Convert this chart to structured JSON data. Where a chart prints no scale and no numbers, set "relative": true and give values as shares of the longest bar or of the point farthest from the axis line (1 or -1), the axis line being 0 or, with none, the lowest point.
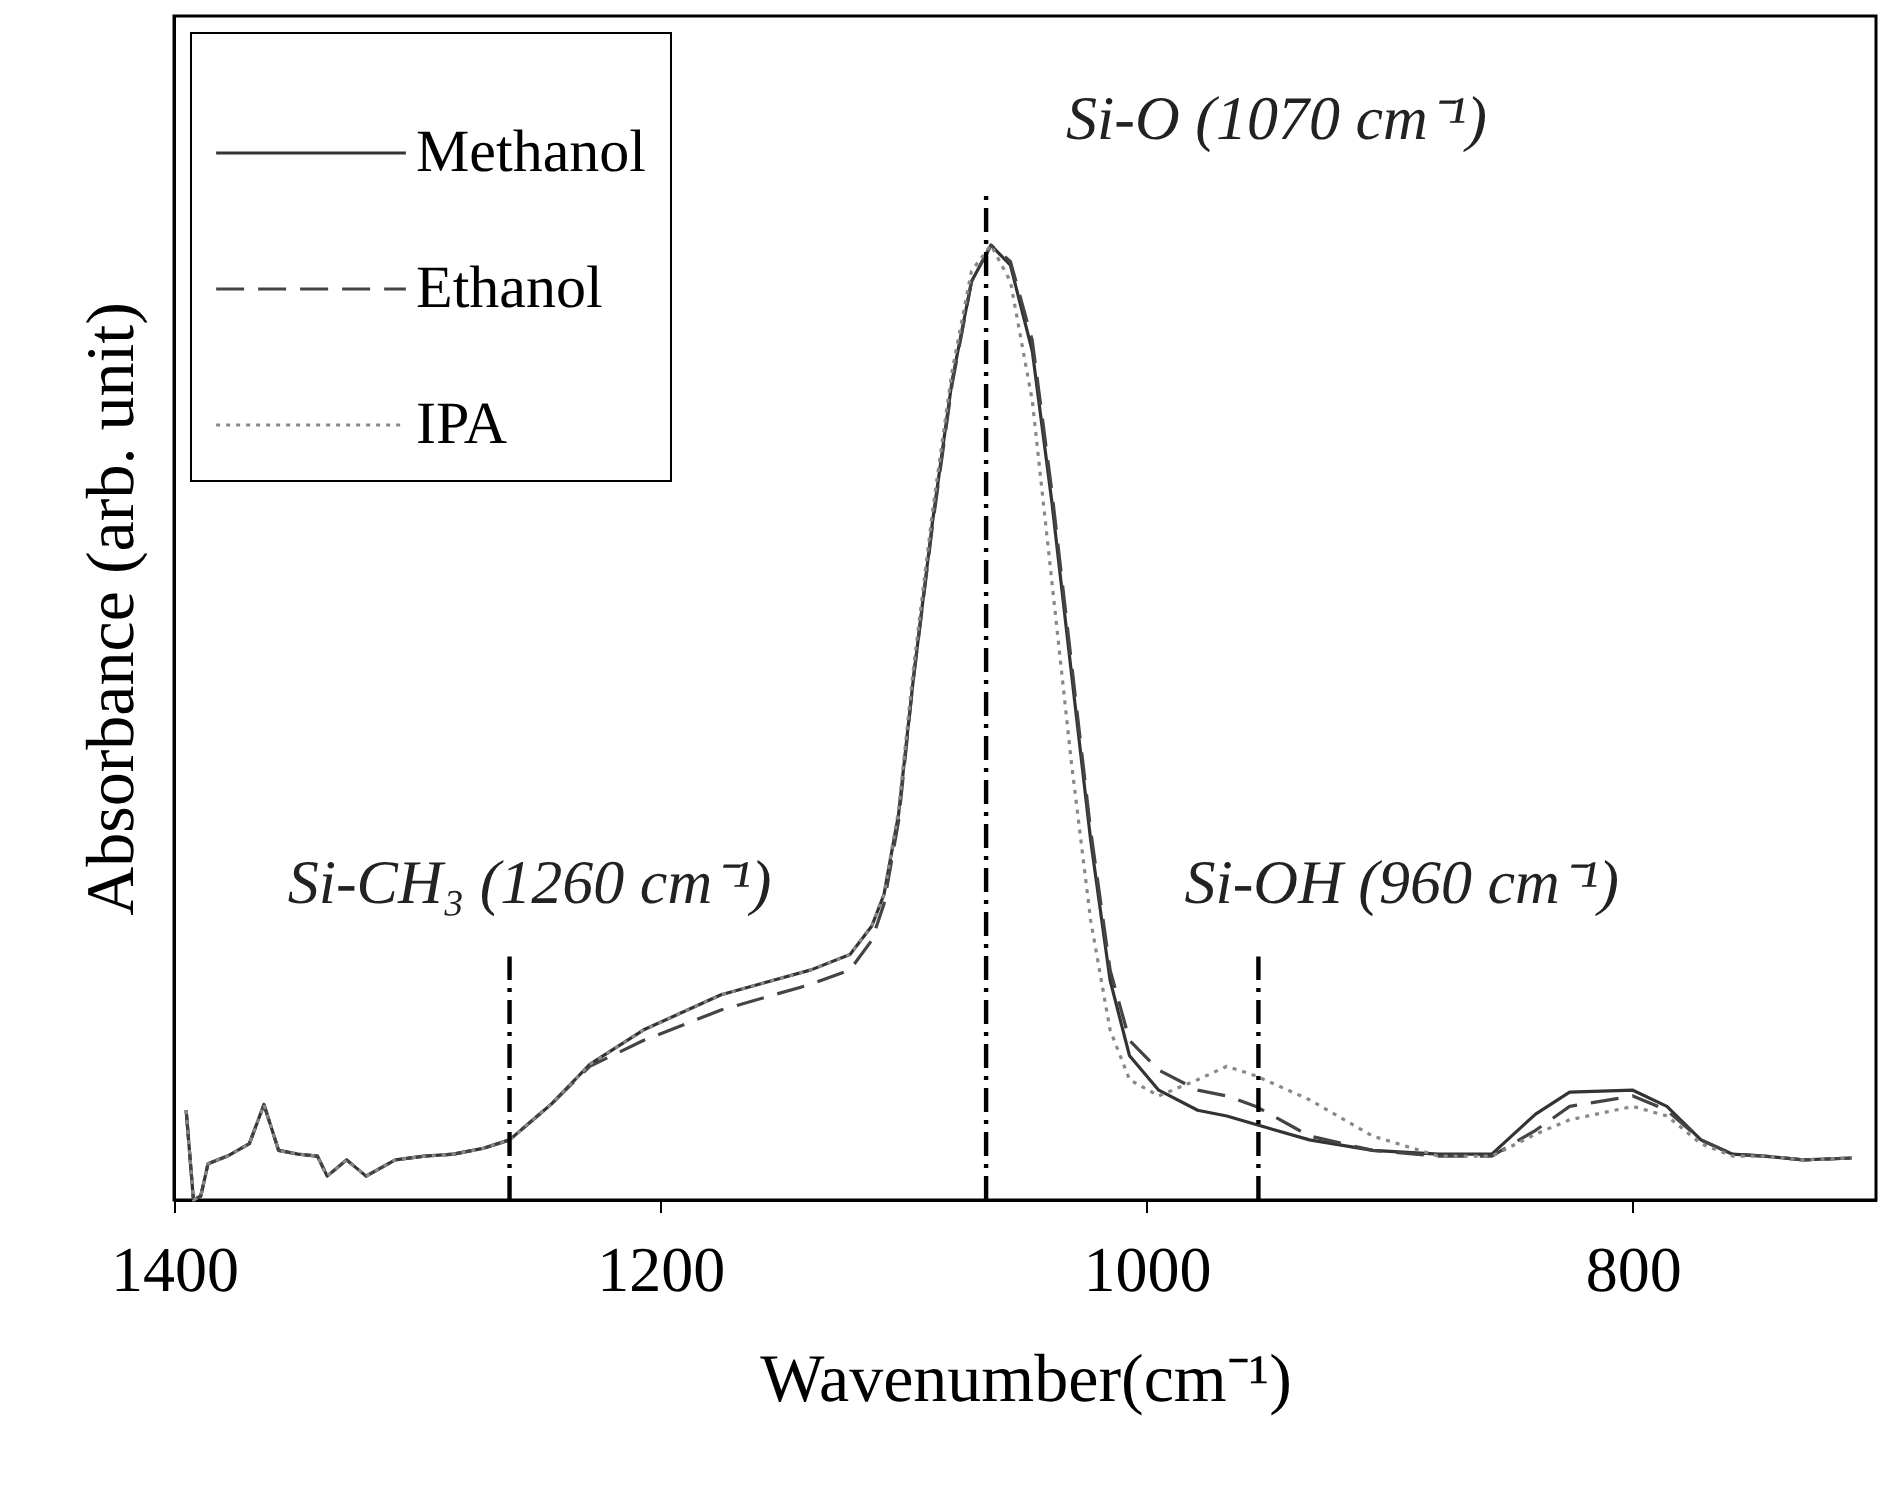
{
  "chart_data": {
    "type": "line",
    "xlabel": "Wavenumber(cm⁻¹)",
    "ylabel": "Absorbance (arb. unit)",
    "relative": true,
    "xlim": [
      1400,
      700
    ],
    "xticks": [
      1400,
      1200,
      1000,
      800
    ],
    "grid": false,
    "legend": "top left",
    "marker": "none",
    "x": [
      1395,
      1392,
      1389,
      1386,
      1378,
      1369,
      1363,
      1357,
      1349,
      1341,
      1337,
      1329,
      1321,
      1309,
      1297,
      1285,
      1273,
      1262,
      1245,
      1229,
      1207,
      1175,
      1138,
      1122,
      1113,
      1108,
      1102,
      1096,
      1088,
      1080,
      1072,
      1064,
      1056,
      1047,
      1039,
      1031,
      1023,
      1015,
      1007,
      995,
      979,
      967,
      955,
      933,
      907,
      880,
      858,
      840,
      826,
      800,
      786,
      772,
      759,
      746,
      730,
      710
    ],
    "series": [
      {
        "name": "Methanol",
        "color": "#333333",
        "line_style": "solid",
        "values": [
          0.094,
          0,
          0.004,
          0.038,
          0.046,
          0.059,
          0.1,
          0.052,
          0.048,
          0.046,
          0.025,
          0.042,
          0.025,
          0.042,
          0.046,
          0.048,
          0.054,
          0.063,
          0.1,
          0.142,
          0.178,
          0.215,
          0.241,
          0.257,
          0.287,
          0.32,
          0.404,
          0.544,
          0.711,
          0.858,
          0.962,
          1.0,
          0.979,
          0.889,
          0.732,
          0.554,
          0.377,
          0.23,
          0.151,
          0.115,
          0.094,
          0.088,
          0.079,
          0.063,
          0.052,
          0.048,
          0.048,
          0.09,
          0.113,
          0.115,
          0.098,
          0.063,
          0.048,
          0.046,
          0.042,
          0.044
        ]
      },
      {
        "name": "Ethanol",
        "color": "#444444",
        "line_style": "dashed",
        "values": [
          0.094,
          0,
          0.004,
          0.038,
          0.046,
          0.059,
          0.1,
          0.052,
          0.048,
          0.046,
          0.025,
          0.042,
          0.025,
          0.042,
          0.046,
          0.048,
          0.054,
          0.063,
          0.1,
          0.14,
          0.167,
          0.199,
          0.226,
          0.241,
          0.272,
          0.31,
          0.397,
          0.544,
          0.707,
          0.854,
          0.962,
          1.0,
          0.983,
          0.9,
          0.743,
          0.565,
          0.387,
          0.241,
          0.167,
          0.136,
          0.115,
          0.109,
          0.098,
          0.067,
          0.052,
          0.046,
          0.046,
          0.073,
          0.098,
          0.109,
          0.094,
          0.063,
          0.048,
          0.046,
          0.042,
          0.044
        ]
      },
      {
        "name": "IPA",
        "color": "#888888",
        "line_style": "dotted",
        "values": [
          0.094,
          0,
          0.004,
          0.038,
          0.046,
          0.059,
          0.1,
          0.052,
          0.048,
          0.046,
          0.025,
          0.042,
          0.025,
          0.042,
          0.046,
          0.048,
          0.054,
          0.063,
          0.1,
          0.142,
          0.178,
          0.215,
          0.241,
          0.257,
          0.287,
          0.32,
          0.408,
          0.554,
          0.722,
          0.868,
          0.973,
          1.0,
          0.962,
          0.837,
          0.649,
          0.46,
          0.293,
          0.178,
          0.126,
          0.109,
          0.126,
          0.14,
          0.13,
          0.105,
          0.067,
          0.046,
          0.046,
          0.069,
          0.084,
          0.098,
          0.088,
          0.059,
          0.046,
          0.046,
          0.042,
          0.044
        ]
      }
    ],
    "ref_lines": [
      {
        "axis": "x",
        "value": 1262,
        "line_style": "dashed",
        "color": "#000000",
        "label": "Si-CH₃ (1260 cm⁻¹)"
      },
      {
        "axis": "x",
        "value": 1066,
        "line_style": "dashed",
        "color": "#000000",
        "label": "Si-O (1070 cm⁻¹)"
      },
      {
        "axis": "x",
        "value": 954,
        "line_style": "dashed",
        "color": "#000000",
        "label": "Si-OH (960 cm⁻¹)"
      }
    ]
  }
}
